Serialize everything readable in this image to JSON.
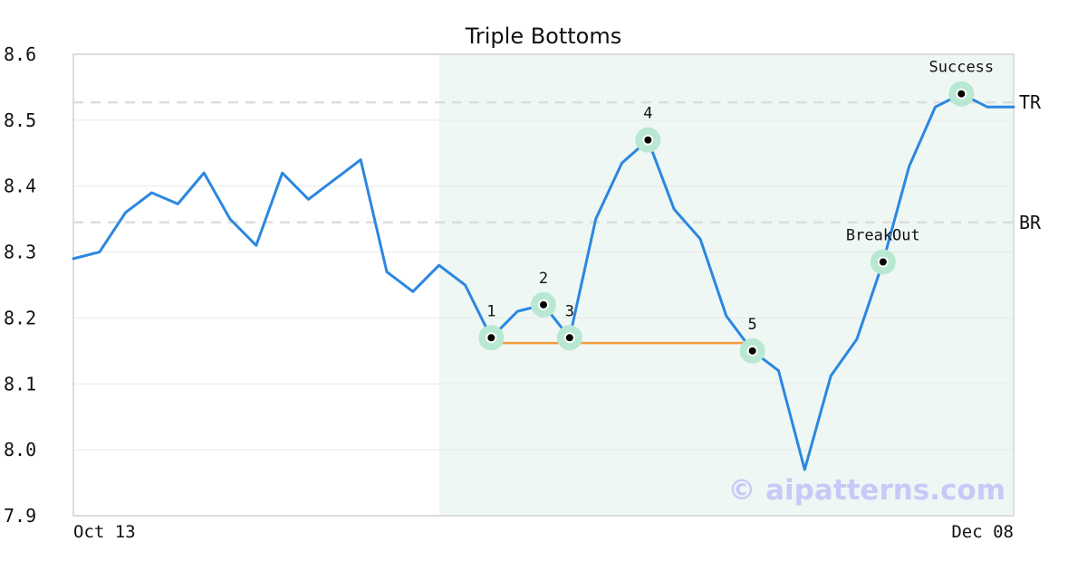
{
  "chart_data": {
    "type": "line",
    "title": "Triple Bottoms",
    "x_start_label": "Oct 13",
    "x_end_label": "Dec 08",
    "ylim": [
      7.9,
      8.6
    ],
    "yticks": [
      "7.9",
      "8.0",
      "8.1",
      "8.2",
      "8.3",
      "8.4",
      "8.5",
      "8.6"
    ],
    "grid": true,
    "series": [
      {
        "values": [
          8.29,
          8.3,
          8.36,
          8.39,
          8.373,
          8.42,
          8.35,
          8.31,
          8.42,
          8.38,
          8.41,
          8.44,
          8.27,
          8.24,
          8.28,
          8.25,
          8.17,
          8.21,
          8.22,
          8.17,
          8.35,
          8.435,
          8.47,
          8.365,
          8.32,
          8.203,
          8.15,
          8.12,
          7.97,
          8.112,
          8.168,
          8.285,
          8.43,
          8.52,
          8.54,
          8.52,
          8.52
        ],
        "color": "#2b87e0"
      }
    ],
    "levels": [
      {
        "label": "TR",
        "value": 8.527
      },
      {
        "label": "BR",
        "value": 8.345
      }
    ],
    "pattern_zone": {
      "start_index": 14,
      "end_index": 36
    },
    "support_line": {
      "from_index": 16,
      "to_index": 26,
      "value": 8.162,
      "color": "#f39c3c"
    },
    "markers": [
      {
        "label": "1",
        "index": 16,
        "value": 8.17,
        "label_pos": "above"
      },
      {
        "label": "2",
        "index": 18,
        "value": 8.22,
        "label_pos": "above"
      },
      {
        "label": "3",
        "index": 19,
        "value": 8.17,
        "label_pos": "above"
      },
      {
        "label": "4",
        "index": 22,
        "value": 8.47,
        "label_pos": "above"
      },
      {
        "label": "5",
        "index": 26,
        "value": 8.15,
        "label_pos": "above"
      },
      {
        "label": "BreakOut",
        "index": 31,
        "value": 8.285,
        "label_pos": "above"
      },
      {
        "label": "Success",
        "index": 34,
        "value": 8.54,
        "label_pos": "above"
      }
    ]
  },
  "watermark": "© aipatterns.com",
  "colors": {
    "line": "#2b87e0",
    "zone": "#eef7f4",
    "marker_halo": "#b8e8d2",
    "support": "#f39c3c",
    "level": "#dddddd",
    "grid": "#e8e8e8",
    "frame": "#dddddd"
  }
}
